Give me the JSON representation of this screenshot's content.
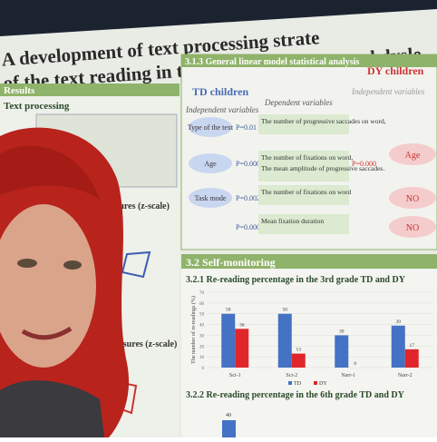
{
  "poster": {
    "title_lines": [
      "A development of text processing strate",
      "of the text reading in typically-developing and dysle"
    ],
    "left": {
      "section": "Results",
      "subsection": "Text processing",
      "measures_1": "easures (z-scale)",
      "measures_2": "measures (z-scale)"
    },
    "glm": {
      "heading": "3.1.3 General linear model statistical analysis",
      "td": "TD children",
      "dy": "DY children",
      "col_headers": [
        "Independent variables",
        "Dependent variables",
        "Independent variables"
      ],
      "rows": [
        {
          "iv": "Type of the text",
          "p": "P=0.01",
          "dv": [
            "The number of progressive saccades on word,"
          ]
        },
        {
          "iv": "Age",
          "p": "P=0.000",
          "dv": [
            "The number of fixations on word,",
            "The mean amplitude of progressive saccades."
          ],
          "dy_p": "P=0.000",
          "dy": "Age"
        },
        {
          "iv": "Task mode",
          "p": "P=0.002",
          "dv": [
            "The number of fixations on word"
          ],
          "dy": "NO"
        },
        {
          "iv": "",
          "p": "P=0.000",
          "dv": [
            "Mean fixation duration"
          ],
          "dy": "NO"
        }
      ]
    },
    "self": {
      "heading": "3.2 Self-monitoring",
      "chart1": {
        "heading": "3.2.1 Re-reading percentage in the 3rd grade TD and DY",
        "y_label": "The number of re-readings (%)",
        "categories": [
          "Sci-1",
          "Sci-2",
          "Narr-1",
          "Narr-2"
        ],
        "ylim": [
          0,
          70
        ],
        "yticks": [
          0,
          10,
          20,
          30,
          40,
          50,
          60,
          70
        ],
        "series": [
          {
            "name": "TD",
            "color": "#4472c4",
            "values": [
              50,
              50,
              30,
              39
            ]
          },
          {
            "name": "DY",
            "color": "#e0262b",
            "values": [
              36,
              13,
              0,
              17
            ]
          }
        ]
      },
      "chart2": {
        "heading": "3.2.2 Re-reading percentage in the 6th grade TD and DY",
        "first_value": 40
      }
    }
  }
}
